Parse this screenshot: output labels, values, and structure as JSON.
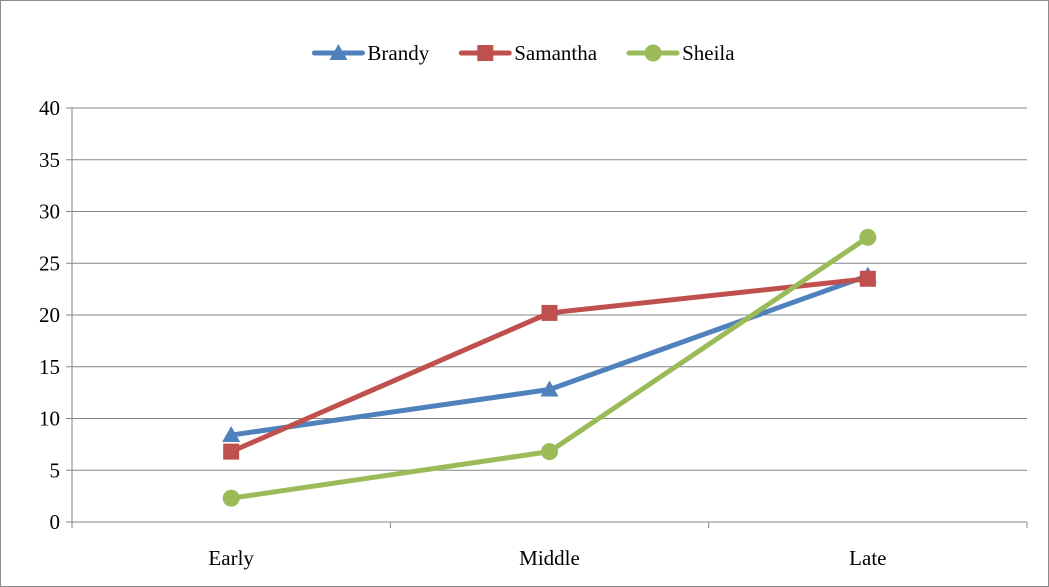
{
  "chart_data": {
    "type": "line",
    "categories": [
      "Early",
      "Middle",
      "Late"
    ],
    "series": [
      {
        "name": "Brandy",
        "values": [
          8.4,
          12.8,
          23.8
        ],
        "color": "#4f81bd",
        "marker": "triangle"
      },
      {
        "name": "Samantha",
        "values": [
          6.8,
          20.2,
          23.5
        ],
        "color": "#c0504d",
        "marker": "square"
      },
      {
        "name": "Sheila",
        "values": [
          2.3,
          6.8,
          27.5
        ],
        "color": "#9bbb59",
        "marker": "circle"
      }
    ],
    "ylim": [
      0,
      40
    ],
    "yticks": [
      0,
      5,
      10,
      15,
      20,
      25,
      30,
      35,
      40
    ],
    "grid": true,
    "legend": "top"
  }
}
